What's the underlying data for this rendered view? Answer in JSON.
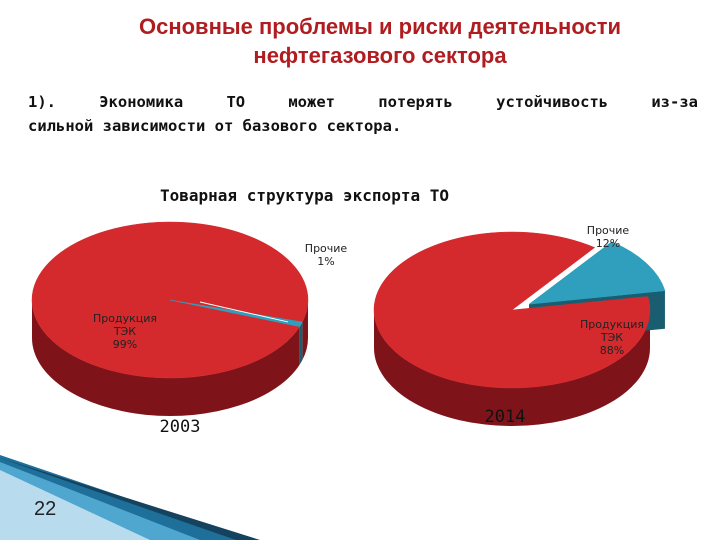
{
  "title": {
    "line1": "Основные проблемы и риски деятельности",
    "line2": "нефтегазового сектора"
  },
  "subtitle": {
    "line1": "1). Экономика ТО может потерять устойчивость из-за",
    "line2": "сильной зависимости от базового сектора."
  },
  "chart_data": {
    "type": "pie",
    "title": "Товарная структура экспорта ТО",
    "charts": [
      {
        "year": "2003",
        "slices": [
          {
            "name": [
              "Продукция",
              "ТЭК"
            ],
            "label": "99%",
            "value": 99,
            "color": "#d42a2e",
            "side": "#7e141a"
          },
          {
            "name": [
              "Прочие"
            ],
            "label": "1%",
            "value": 1,
            "color": "#2f9fbd",
            "side": "#185e70"
          }
        ]
      },
      {
        "year": "2014",
        "slices": [
          {
            "name": [
              "Продукция",
              "ТЭК"
            ],
            "label": "88%",
            "value": 88,
            "color": "#d42a2e",
            "side": "#7e141a"
          },
          {
            "name": [
              "Прочие"
            ],
            "label": "12%",
            "value": 12,
            "color": "#2f9fbd",
            "side": "#185e70"
          }
        ]
      }
    ]
  },
  "slide_number": "22",
  "colors": {
    "title": "#b01d21",
    "accent_blue": "#2f9fbd",
    "main_red": "#d42a2e",
    "dark_red": "#7e141a",
    "decor_blue": "#1e6f99"
  }
}
